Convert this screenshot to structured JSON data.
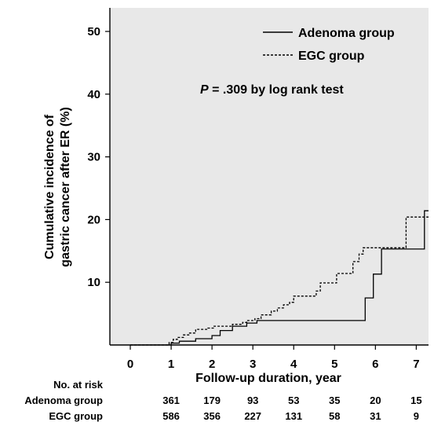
{
  "chart_data": {
    "type": "line",
    "ylabel_lines": [
      "Cumulative incidence of",
      "gastric cancer after ER  (%)"
    ],
    "xlabel": "Follow-up duration, year",
    "xlim": [
      -0.5,
      7.3
    ],
    "ylim": [
      0,
      50
    ],
    "xticks": [
      0,
      1,
      2,
      3,
      4,
      5,
      6,
      7
    ],
    "yticks": [
      10,
      20,
      30,
      40,
      50
    ],
    "annotation": {
      "p_symbol": "P",
      "p_rest": " = .309 by log rank test"
    },
    "legend_position": "top-right",
    "series": [
      {
        "name": "Adenoma group",
        "style": "solid",
        "x": [
          0,
          1.0,
          1.0,
          1.2,
          1.2,
          1.6,
          1.6,
          2.0,
          2.0,
          2.2,
          2.2,
          2.5,
          2.5,
          2.85,
          2.85,
          3.1,
          3.1,
          5.75,
          5.75,
          5.95,
          5.95,
          6.15,
          6.15,
          6.6,
          7.2,
          7.2,
          7.3
        ],
        "y": [
          0,
          0,
          0.3,
          0.3,
          0.6,
          0.6,
          1.0,
          1.0,
          1.5,
          1.5,
          2.3,
          2.3,
          3.0,
          3.0,
          3.5,
          3.5,
          3.9,
          3.9,
          7.5,
          7.5,
          11.3,
          11.3,
          15.3,
          15.3,
          15.3,
          21.4,
          21.4
        ]
      },
      {
        "name": "EGC group",
        "style": "dashed",
        "x": [
          0,
          0.95,
          0.95,
          1.05,
          1.05,
          1.15,
          1.15,
          1.3,
          1.3,
          1.45,
          1.45,
          1.6,
          1.6,
          1.9,
          1.9,
          2.05,
          2.05,
          2.5,
          2.5,
          2.75,
          2.75,
          2.85,
          2.85,
          3.05,
          3.05,
          3.2,
          3.2,
          3.45,
          3.45,
          3.6,
          3.6,
          3.75,
          3.75,
          3.9,
          3.9,
          4.0,
          4.0,
          4.55,
          4.55,
          4.65,
          4.65,
          5.05,
          5.05,
          5.45,
          5.45,
          5.6,
          5.6,
          5.7,
          5.7,
          6.75,
          6.75,
          7.3
        ],
        "y": [
          0,
          0,
          0.4,
          0.4,
          0.9,
          0.9,
          1.2,
          1.2,
          1.6,
          1.6,
          1.9,
          1.9,
          2.5,
          2.5,
          2.7,
          2.7,
          3.0,
          3.0,
          3.3,
          3.3,
          3.6,
          3.6,
          3.9,
          3.9,
          4.2,
          4.2,
          4.8,
          4.8,
          5.4,
          5.4,
          5.9,
          5.9,
          6.4,
          6.4,
          6.8,
          6.8,
          7.8,
          7.8,
          8.6,
          8.6,
          9.9,
          9.9,
          11.4,
          11.4,
          13.3,
          13.3,
          14.5,
          14.5,
          15.5,
          15.5,
          20.4,
          20.4
        ]
      }
    ]
  },
  "risk_table": {
    "header": "No. at risk",
    "times": [
      1,
      2,
      3,
      4,
      5,
      6,
      7
    ],
    "rows": [
      {
        "label": "Adenoma group",
        "values": [
          "361",
          "179",
          "93",
          "53",
          "35",
          "20",
          "15"
        ]
      },
      {
        "label": "EGC group",
        "values": [
          "586",
          "356",
          "227",
          "131",
          "58",
          "31",
          "9"
        ]
      }
    ]
  },
  "colors": {
    "plot_background": "#e8e8e8",
    "line": "#000000",
    "page": "#ffffff"
  }
}
